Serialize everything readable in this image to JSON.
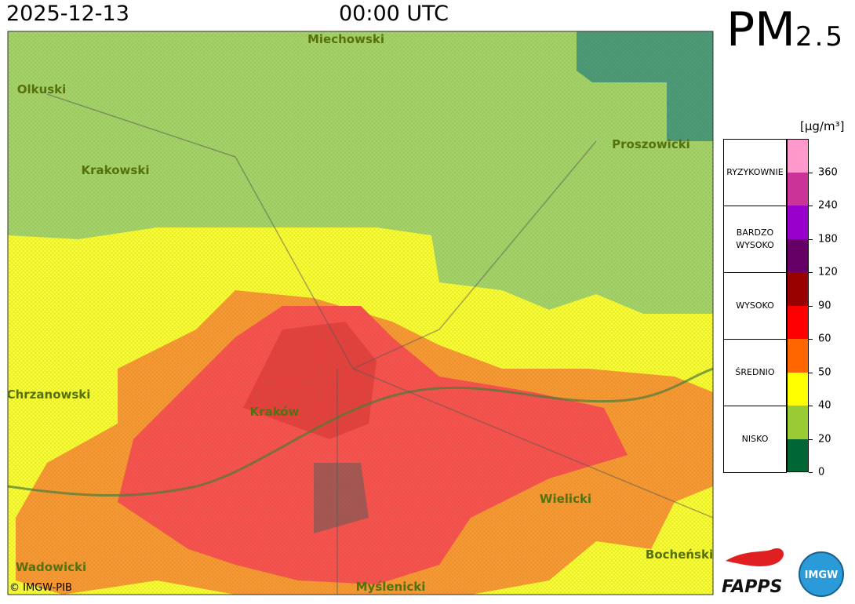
{
  "header": {
    "date": "2025-12-13",
    "time": "00:00 UTC",
    "pollutant": {
      "main": "PM",
      "sub": "2.5"
    }
  },
  "map": {
    "places": [
      "Miechowski",
      "Olkuski",
      "Krakowski",
      "Proszowicki",
      "Chrzanowski",
      "Kraków",
      "Wielicki",
      "Bocheński",
      "Wadowicki",
      "Myślenicki"
    ],
    "copyright": "© IMGW-PIB"
  },
  "legend": {
    "unit": "[µg/m³]",
    "levels": [
      "RYZYKOWNIE",
      "BARDZO WYSOKO",
      "WYSOKO",
      "ŚREDNIO",
      "NISKO"
    ],
    "colors": [
      "#ff99cc",
      "#cc3399",
      "#9900cc",
      "#660066",
      "#990000",
      "#ff0000",
      "#ff6600",
      "#ffff00",
      "#99cc33",
      "#006633"
    ],
    "ticks": [
      360,
      240,
      180,
      120,
      90,
      60,
      50,
      40,
      20,
      0
    ]
  },
  "logos": [
    "FAPPS",
    "IMGW"
  ]
}
